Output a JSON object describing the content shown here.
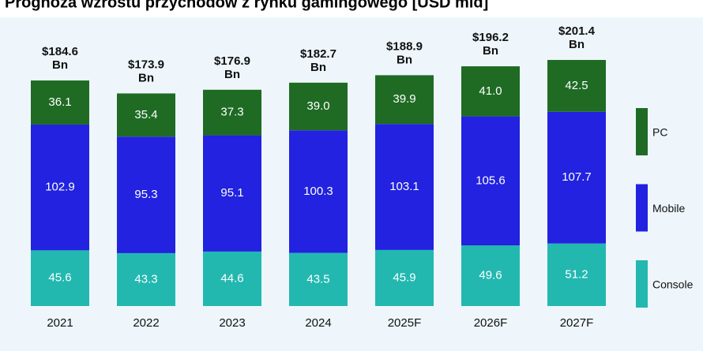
{
  "chart_data": {
    "type": "stacked_bar",
    "title": "Prognoza wzrostu przychodów z rynku gamingowego [USD mld]",
    "categories": [
      "2021",
      "2022",
      "2023",
      "2024",
      "2025F",
      "2026F",
      "2027F"
    ],
    "series": [
      {
        "name": "Console",
        "color": "#22b8b0",
        "values": [
          45.6,
          43.3,
          44.6,
          43.5,
          45.9,
          49.6,
          51.2
        ]
      },
      {
        "name": "Mobile",
        "color": "#2222e0",
        "values": [
          102.9,
          95.3,
          95.1,
          100.3,
          103.1,
          105.6,
          107.7
        ]
      },
      {
        "name": "PC",
        "color": "#1f6b24",
        "values": [
          36.1,
          35.4,
          37.3,
          39.0,
          39.9,
          41.0,
          42.5
        ],
        "value_labels": [
          "36.1",
          "35.4",
          "37.3",
          "39.0",
          "39.9",
          "41.0",
          "42.5"
        ]
      }
    ],
    "total_labels": [
      [
        "$184.6",
        "Bn"
      ],
      [
        "$173.9",
        "Bn"
      ],
      [
        "$176.9",
        "Bn"
      ],
      [
        "$182.7",
        "Bn"
      ],
      [
        "$188.9",
        "Bn"
      ],
      [
        "$196.2",
        "Bn"
      ],
      [
        "$201.4",
        "Bn"
      ]
    ]
  }
}
